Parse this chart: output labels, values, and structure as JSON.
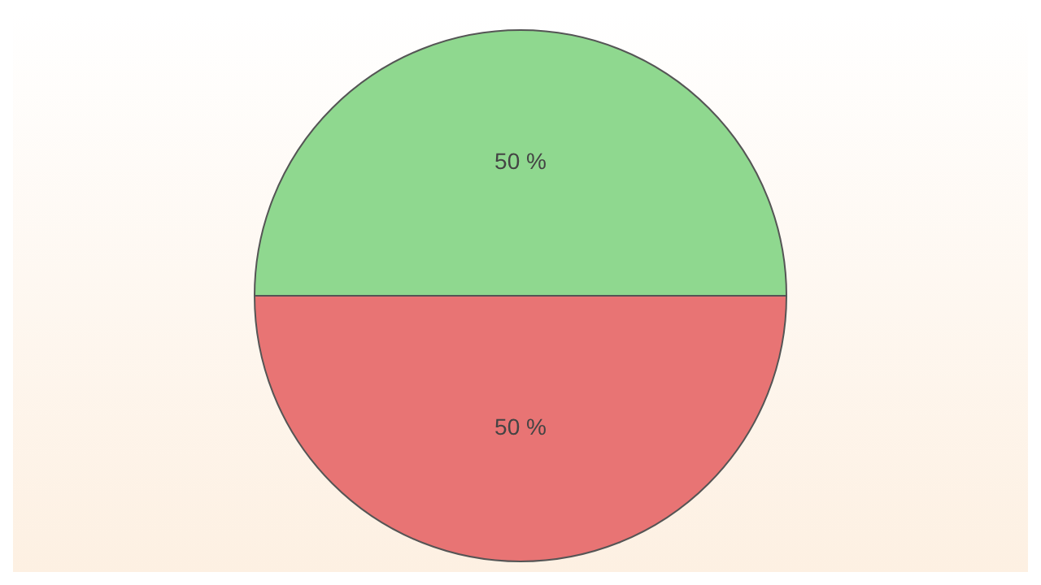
{
  "chart_data": {
    "type": "pie",
    "categories": [
      null,
      null
    ],
    "values": [
      50,
      50
    ],
    "colors": [
      "#8fd88f",
      "#e87474"
    ],
    "value_labels": [
      "50 %",
      "50 %"
    ],
    "legend": false
  }
}
